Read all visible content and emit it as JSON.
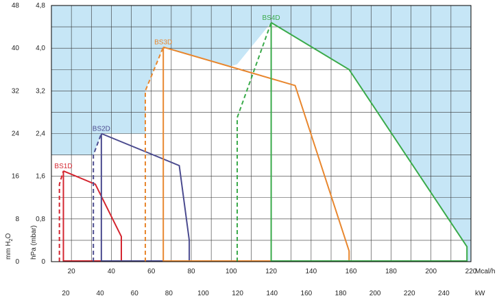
{
  "chart_data": {
    "type": "line",
    "title": "",
    "left_axis": {
      "label_main": "mm H",
      "label_sub": "2",
      "label_end": "O",
      "ticks": [
        "0",
        "8",
        "16",
        "24",
        "32",
        "40",
        "48"
      ],
      "range": [
        0,
        48
      ]
    },
    "right_axis": {
      "label": "hPa (mbar)",
      "ticks": [
        "0",
        "0,8",
        "1,6",
        "2,4",
        "3,2",
        "4,0",
        "4,8"
      ],
      "range": [
        0,
        4.8
      ]
    },
    "x_axis_mcal": {
      "unit": "Mcal/h",
      "ticks": [
        "20",
        "40",
        "60",
        "80",
        "100",
        "120",
        "140",
        "160",
        "180",
        "200",
        "220"
      ],
      "range": [
        10,
        220
      ]
    },
    "x_axis_kw": {
      "unit": "kW",
      "ticks": [
        "20",
        "40",
        "60",
        "80",
        "100",
        "120",
        "140",
        "160",
        "180",
        "200",
        "220",
        "240"
      ]
    },
    "ylim": [
      0,
      48
    ],
    "grid": true,
    "colors": {
      "forbidden_area": "#c6e6f6",
      "grid": "#333333",
      "axis": "#000000"
    },
    "series": [
      {
        "name": "BS1D",
        "color": "#d4252f",
        "x": [
          14,
          14,
          16,
          32,
          45,
          45
        ],
        "y": [
          0,
          14.5,
          17,
          14.5,
          4.7,
          0
        ],
        "dashed_to": 1,
        "label_at": [
          16,
          17
        ]
      },
      {
        "name": "BS2D",
        "color": "#4b4b8f",
        "x": [
          31,
          31,
          35,
          74,
          79,
          79
        ],
        "y": [
          0,
          20,
          24,
          18,
          4,
          0
        ],
        "dashed_to": 1,
        "label_at": [
          35,
          24
        ]
      },
      {
        "name": "BS3D",
        "color": "#e8862d",
        "x": [
          57,
          57,
          66,
          132,
          159,
          159
        ],
        "y": [
          0,
          32,
          40.2,
          33,
          2,
          0
        ],
        "dashed_to": 1,
        "label_at": [
          66,
          40.2
        ]
      },
      {
        "name": "BS4D",
        "color": "#3aaa4a",
        "x": [
          103,
          103,
          120,
          159,
          218,
          218
        ],
        "y": [
          0,
          27,
          44.8,
          36,
          2.8,
          0
        ],
        "dashed_to": 1,
        "label_at": [
          120,
          44.8
        ]
      }
    ]
  }
}
